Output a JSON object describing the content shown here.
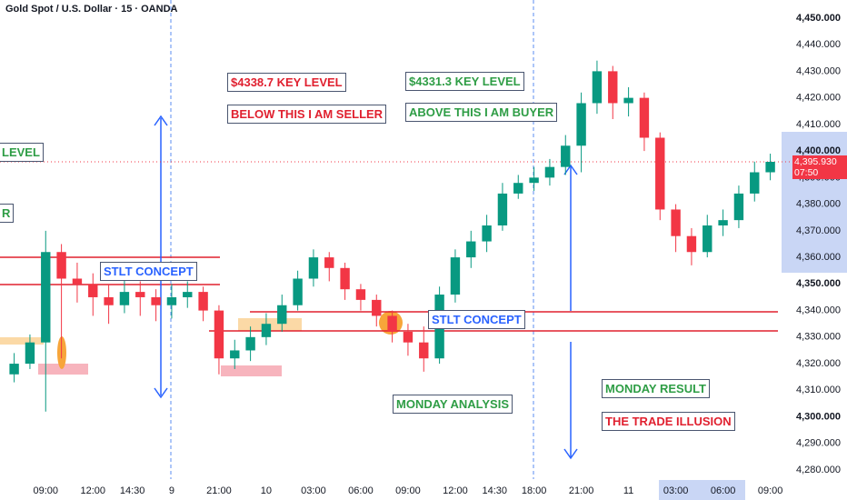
{
  "chart_data": {
    "type": "candlestick",
    "title": "Gold Spot / U.S. Dollar · 15 · OANDA",
    "x": [
      -2,
      -1,
      0,
      1,
      2,
      3,
      4,
      5,
      6,
      7,
      8,
      9,
      10,
      11,
      12,
      13,
      14,
      15,
      16,
      17,
      18,
      19,
      20,
      21,
      22,
      23,
      24,
      25,
      26,
      27,
      28,
      29,
      30,
      31,
      32,
      33,
      34,
      35,
      36,
      37,
      38,
      39,
      40,
      41,
      42,
      43,
      44,
      45,
      46
    ],
    "open": [
      4316,
      4320,
      4328,
      4362,
      4352,
      4350,
      4345,
      4342,
      4347,
      4345,
      4342,
      4345,
      4347,
      4340,
      4322,
      4325,
      4330,
      4335,
      4342,
      4352,
      4360,
      4356,
      4348,
      4344,
      4338,
      4332,
      4328,
      4322,
      4346,
      4360,
      4366,
      4372,
      4384,
      4388,
      4390,
      4394,
      4402,
      4418,
      4430,
      4418,
      4420,
      4405,
      4378,
      4368,
      4362,
      4372,
      4374,
      4384,
      4392
    ],
    "high": [
      4324,
      4331,
      4370,
      4365,
      4358,
      4354,
      4350,
      4352,
      4351,
      4348,
      4350,
      4351,
      4349,
      4342,
      4329,
      4334,
      4339,
      4346,
      4355,
      4363,
      4362,
      4358,
      4350,
      4346,
      4340,
      4335,
      4334,
      4349,
      4363,
      4370,
      4376,
      4388,
      4391,
      4394,
      4397,
      4406,
      4422,
      4434,
      4432,
      4424,
      4422,
      4407,
      4380,
      4371,
      4376,
      4378,
      4387,
      4396,
      4399
    ],
    "low": [
      4313,
      4318,
      4302,
      4322,
      4343,
      4338,
      4335,
      4339,
      4338,
      4336,
      4337,
      4341,
      4336,
      4316,
      4318,
      4321,
      4327,
      4332,
      4340,
      4349,
      4351,
      4344,
      4340,
      4334,
      4328,
      4323,
      4317,
      4320,
      4343,
      4356,
      4362,
      4370,
      4382,
      4385,
      4387,
      4391,
      4392,
      4414,
      4412,
      4413,
      4400,
      4374,
      4362,
      4357,
      4360,
      4368,
      4371,
      4381,
      4389
    ],
    "close": [
      4320,
      4328,
      4362,
      4352,
      4350,
      4345,
      4342,
      4347,
      4345,
      4342,
      4345,
      4347,
      4340,
      4322,
      4325,
      4330,
      4335,
      4342,
      4352,
      4360,
      4356,
      4348,
      4344,
      4338,
      4332,
      4328,
      4322,
      4346,
      4360,
      4366,
      4372,
      4384,
      4388,
      4390,
      4394,
      4402,
      4418,
      4430,
      4418,
      4420,
      4405,
      4378,
      4368,
      4362,
      4372,
      4374,
      4384,
      4392,
      4395.93
    ],
    "up_color": "#089981",
    "down_color": "#f23645",
    "xlim": [
      -2.9,
      46.6
    ],
    "xticks": [
      {
        "value": 0,
        "label": "09:00"
      },
      {
        "value": 3,
        "label": "12:00"
      },
      {
        "value": 5.5,
        "label": "14:30"
      },
      {
        "value": 8,
        "label": "9"
      },
      {
        "value": 11,
        "label": "21:00"
      },
      {
        "value": 14,
        "label": "10"
      },
      {
        "value": 17,
        "label": "03:00"
      },
      {
        "value": 20,
        "label": "06:00"
      },
      {
        "value": 23,
        "label": "09:00"
      },
      {
        "value": 26,
        "label": "12:00"
      },
      {
        "value": 28.5,
        "label": "14:30"
      },
      {
        "value": 31,
        "label": "18:00"
      },
      {
        "value": 34,
        "label": "21:00"
      },
      {
        "value": 37,
        "label": "11"
      },
      {
        "value": 40,
        "label": "03:00"
      },
      {
        "value": 43,
        "label": "06:00"
      },
      {
        "value": 46,
        "label": "09:00"
      }
    ],
    "ylim": [
      4276.6,
      4456.8
    ],
    "yticks": [
      {
        "value": 4280,
        "label": "4,280.000"
      },
      {
        "value": 4290,
        "label": "4,290.000"
      },
      {
        "value": 4300,
        "label": "4,300.000"
      },
      {
        "value": 4310,
        "label": "4,310.000"
      },
      {
        "value": 4320,
        "label": "4,320.000"
      },
      {
        "value": 4330,
        "label": "4,330.000"
      },
      {
        "value": 4340,
        "label": "4,340.000"
      },
      {
        "value": 4350,
        "label": "4,350.000"
      },
      {
        "value": 4360,
        "label": "4,360.000"
      },
      {
        "value": 4370,
        "label": "4,370.000"
      },
      {
        "value": 4380,
        "label": "4,380.000"
      },
      {
        "value": 4390,
        "label": "4,390.000"
      },
      {
        "value": 4400,
        "label": "4,400.000"
      },
      {
        "value": 4410,
        "label": "4,410.000"
      },
      {
        "value": 4420,
        "label": "4,420.000"
      },
      {
        "value": 4430,
        "label": "4,430.000"
      },
      {
        "value": 4440,
        "label": "4,440.000"
      },
      {
        "value": 4450,
        "label": "4,450.000"
      }
    ],
    "last_price": {
      "value": 4395.93,
      "label": "4,395.930"
    },
    "countdown": "07:50",
    "grid": false,
    "annotations": [
      "$4338.7 KEY LEVEL",
      "BELOW THIS I AM SELLER",
      "$4331.3 KEY LEVEL",
      "ABOVE THIS I AM BUYER",
      "LEVEL",
      "R",
      "STLT CONCEPT",
      "STLT CONCEPT",
      "MONDAY ANALYSIS",
      "MONDAY RESULT",
      "THE TRADE ILLUSION"
    ]
  }
}
